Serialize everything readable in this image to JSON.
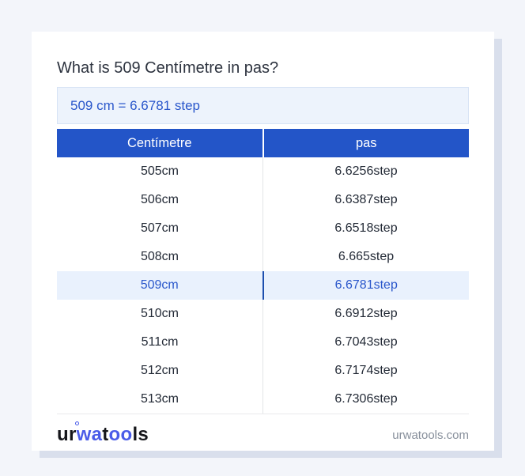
{
  "card": {
    "title": "What is 509 Centímetre in pas?",
    "result_text": "509 cm = 6.6781 step"
  },
  "table": {
    "headers": {
      "from": "Centímetre",
      "to": "pas"
    },
    "rows": [
      {
        "from": "505cm",
        "to": "6.6256step"
      },
      {
        "from": "506cm",
        "to": "6.6387step"
      },
      {
        "from": "507cm",
        "to": "6.6518step"
      },
      {
        "from": "508cm",
        "to": "6.665step"
      },
      {
        "from": "509cm",
        "to": "6.6781step"
      },
      {
        "from": "510cm",
        "to": "6.6912step"
      },
      {
        "from": "511cm",
        "to": "6.7043step"
      },
      {
        "from": "512cm",
        "to": "6.7174step"
      },
      {
        "from": "513cm",
        "to": "6.7306step"
      }
    ],
    "highlighted_row_index": 4
  },
  "footer": {
    "logo": {
      "seg1": "ur",
      "seg2": "wa",
      "seg3": "t",
      "seg4": "oo",
      "seg5": "ls"
    },
    "website": "urwatools.com"
  },
  "colors": {
    "page_background": "#f3f5fa",
    "card_shadow": "#d9dfec",
    "table_header_blue": "#2355c8",
    "result_blue": "#2a57cb",
    "highlight_row_background": "#e9f1fd",
    "highlight_divider_blue": "#1d4fae",
    "logo_blue": "#4a5ce8"
  }
}
